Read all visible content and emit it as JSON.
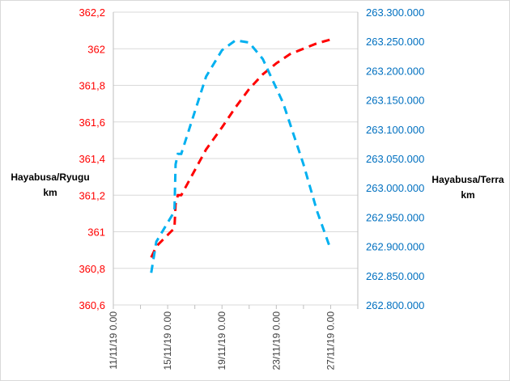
{
  "chart_data": {
    "type": "line",
    "y_left_label_line1": "Hayabusa/Ryugu",
    "y_left_label_line2": "km",
    "y_right_label_line1": "Hayabusa/Terra",
    "y_right_label_line2": "km",
    "x_ticks": [
      "11/11/19 0.00",
      "15/11/19 0.00",
      "19/11/19 0.00",
      "23/11/19 0.00",
      "27/11/19 0.00"
    ],
    "y_left_ticks": [
      "360,6",
      "360,8",
      "361",
      "361,2",
      "361,4",
      "361,6",
      "361,8",
      "362",
      "362,2"
    ],
    "y_right_ticks": [
      "262.800.000",
      "262.850.000",
      "262.900.000",
      "262.950.000",
      "263.000.000",
      "263.050.000",
      "263.100.000",
      "263.150.000",
      "263.200.000",
      "263.250.000",
      "263.300.000"
    ],
    "x_range_days": [
      "11/11/19",
      "29/11/19"
    ],
    "y_left_range": [
      360.6,
      362.2
    ],
    "y_right_range": [
      262800000,
      263300000
    ],
    "grid": true,
    "series": [
      {
        "axis": "left",
        "color": "#ff0000",
        "style": "dashed",
        "points": [
          [
            "13/11/19 19:00",
            360.86
          ],
          [
            "14/11/19 04:00",
            360.92
          ],
          [
            "15/11/19 12:00",
            361.02
          ],
          [
            "15/11/19 14:00",
            361.15
          ],
          [
            "15/11/19 18:00",
            361.2
          ],
          [
            "16/11/19 00:00",
            361.2
          ],
          [
            "17/11/19 20:00",
            361.45
          ],
          [
            "19/11/19 00:00",
            361.57
          ],
          [
            "20/11/19 00:00",
            361.68
          ],
          [
            "21/11/19 00:00",
            361.78
          ],
          [
            "22/11/19 00:00",
            361.86
          ],
          [
            "23/11/19 00:00",
            361.92
          ],
          [
            "24/11/19 00:00",
            361.97
          ],
          [
            "25/11/19 00:00",
            362.0
          ],
          [
            "26/11/19 00:00",
            362.03
          ],
          [
            "27/11/19 00:00",
            362.05
          ]
        ]
      },
      {
        "axis": "right",
        "color": "#00b0f0",
        "style": "dashed",
        "points": [
          [
            "13/11/19 19:00",
            262855000
          ],
          [
            "14/11/19 04:00",
            262908000
          ],
          [
            "15/11/19 12:00",
            262960000
          ],
          [
            "15/11/19 14:00",
            263040000
          ],
          [
            "15/11/19 18:00",
            263058000
          ],
          [
            "16/11/19 00:00",
            263058000
          ],
          [
            "17/11/19 20:00",
            263190000
          ],
          [
            "19/11/19 00:00",
            263235000
          ],
          [
            "20/11/19 00:00",
            263252000
          ],
          [
            "21/11/19 00:00",
            263248000
          ],
          [
            "22/11/19 00:00",
            263220000
          ],
          [
            "23/11/19 12:00",
            263145000
          ],
          [
            "25/11/19 00:00",
            263040000
          ],
          [
            "26/11/19 00:00",
            262960000
          ],
          [
            "27/11/19 00:00",
            262895000
          ]
        ]
      }
    ],
    "colors": {
      "left_axis": "#ff0000",
      "right_axis": "#0070c0",
      "grid": "#d9d9d9"
    }
  }
}
